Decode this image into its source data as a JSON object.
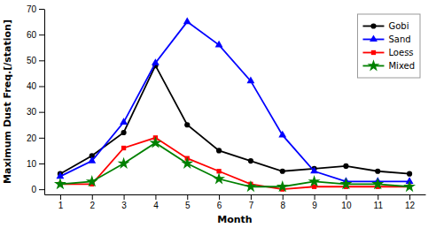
{
  "chart_data": {
    "type": "line",
    "x": [
      1,
      2,
      3,
      4,
      5,
      6,
      7,
      8,
      9,
      10,
      11,
      12
    ],
    "series": [
      {
        "name": "Gobi",
        "color": "#000000",
        "marker": "circle",
        "values": [
          6,
          13,
          22,
          48,
          25,
          15,
          11,
          7,
          8,
          9,
          7,
          6
        ]
      },
      {
        "name": "Sand",
        "color": "#0000ff",
        "marker": "triangle",
        "values": [
          5,
          11,
          26,
          49,
          65,
          56,
          42,
          21,
          7,
          3,
          3,
          3
        ]
      },
      {
        "name": "Loess",
        "color": "#ff0000",
        "marker": "square",
        "values": [
          2,
          2,
          16,
          20,
          12,
          7,
          2,
          0,
          1,
          1,
          1,
          1
        ]
      },
      {
        "name": "Mixed",
        "color": "#008000",
        "marker": "star",
        "values": [
          2,
          3,
          10,
          18,
          10,
          4,
          1,
          1,
          3,
          2,
          2,
          1
        ]
      }
    ],
    "xlabel": "Month",
    "ylabel": "Maximum Dust Freq.[/station]",
    "xlim": [
      0.5,
      12.5
    ],
    "xticks": [
      1,
      2,
      3,
      4,
      5,
      6,
      7,
      8,
      9,
      10,
      11,
      12
    ],
    "ylim": [
      -2,
      70
    ],
    "yticks": [
      0,
      10,
      20,
      30,
      40,
      50,
      60,
      70
    ],
    "grid": false,
    "legend": "upper right"
  }
}
